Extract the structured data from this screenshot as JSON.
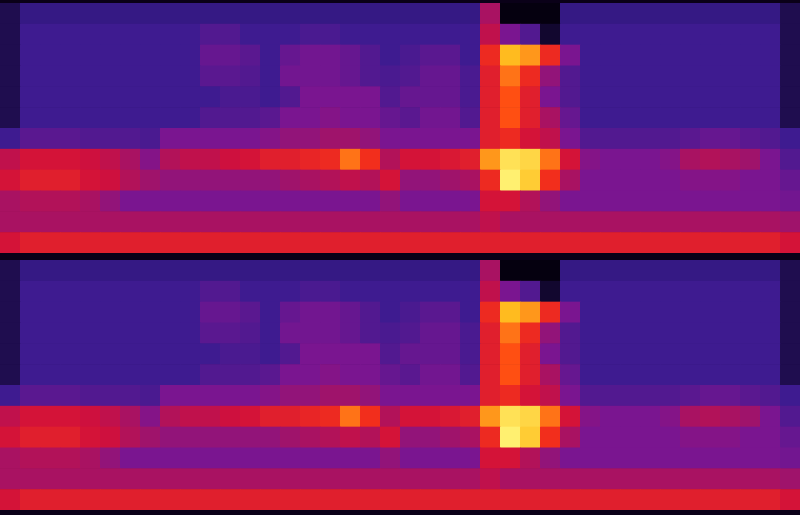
{
  "chart_data": [
    {
      "type": "heatmap",
      "tick_labels": false,
      "cells": [
        [
          0.08,
          0.13,
          0.13,
          0.13,
          0.13,
          0.13,
          0.13,
          0.13,
          0.13,
          0.13,
          0.13,
          0.13,
          0.13,
          0.13,
          0.13,
          0.13,
          0.13,
          0.13,
          0.13,
          0.13,
          0.13,
          0.13,
          0.13,
          0.13,
          0.4,
          0.02,
          0.02,
          0.02,
          0.13,
          0.13,
          0.13,
          0.13,
          0.13,
          0.13,
          0.13,
          0.13,
          0.13,
          0.13,
          0.13,
          0.08
        ],
        [
          0.08,
          0.15,
          0.15,
          0.15,
          0.15,
          0.15,
          0.15,
          0.15,
          0.15,
          0.15,
          0.2,
          0.2,
          0.15,
          0.15,
          0.15,
          0.18,
          0.18,
          0.15,
          0.15,
          0.15,
          0.15,
          0.15,
          0.15,
          0.15,
          0.45,
          0.3,
          0.2,
          0.05,
          0.15,
          0.15,
          0.15,
          0.15,
          0.15,
          0.15,
          0.15,
          0.15,
          0.15,
          0.15,
          0.15,
          0.08
        ],
        [
          0.08,
          0.15,
          0.15,
          0.15,
          0.15,
          0.15,
          0.15,
          0.15,
          0.15,
          0.15,
          0.25,
          0.25,
          0.22,
          0.15,
          0.25,
          0.28,
          0.28,
          0.25,
          0.2,
          0.15,
          0.18,
          0.22,
          0.22,
          0.15,
          0.6,
          0.85,
          0.8,
          0.6,
          0.3,
          0.15,
          0.15,
          0.15,
          0.15,
          0.15,
          0.15,
          0.15,
          0.15,
          0.15,
          0.15,
          0.08
        ],
        [
          0.08,
          0.15,
          0.15,
          0.15,
          0.15,
          0.15,
          0.15,
          0.15,
          0.15,
          0.15,
          0.22,
          0.22,
          0.2,
          0.15,
          0.28,
          0.28,
          0.28,
          0.25,
          0.2,
          0.18,
          0.2,
          0.25,
          0.25,
          0.18,
          0.55,
          0.75,
          0.6,
          0.35,
          0.2,
          0.15,
          0.15,
          0.15,
          0.15,
          0.15,
          0.15,
          0.15,
          0.15,
          0.15,
          0.15,
          0.08
        ],
        [
          0.08,
          0.15,
          0.15,
          0.15,
          0.15,
          0.15,
          0.15,
          0.15,
          0.15,
          0.15,
          0.15,
          0.18,
          0.18,
          0.15,
          0.2,
          0.3,
          0.3,
          0.3,
          0.3,
          0.2,
          0.25,
          0.25,
          0.25,
          0.18,
          0.55,
          0.7,
          0.55,
          0.3,
          0.2,
          0.15,
          0.15,
          0.15,
          0.15,
          0.15,
          0.15,
          0.15,
          0.15,
          0.15,
          0.15,
          0.08
        ],
        [
          0.08,
          0.15,
          0.15,
          0.15,
          0.15,
          0.15,
          0.15,
          0.15,
          0.15,
          0.15,
          0.2,
          0.2,
          0.2,
          0.22,
          0.3,
          0.3,
          0.32,
          0.3,
          0.3,
          0.25,
          0.22,
          0.28,
          0.28,
          0.2,
          0.55,
          0.7,
          0.55,
          0.4,
          0.25,
          0.15,
          0.15,
          0.15,
          0.15,
          0.15,
          0.15,
          0.15,
          0.15,
          0.15,
          0.15,
          0.08
        ],
        [
          0.15,
          0.22,
          0.22,
          0.22,
          0.2,
          0.2,
          0.2,
          0.18,
          0.3,
          0.3,
          0.3,
          0.3,
          0.3,
          0.32,
          0.35,
          0.35,
          0.38,
          0.38,
          0.35,
          0.3,
          0.3,
          0.3,
          0.3,
          0.3,
          0.55,
          0.6,
          0.5,
          0.45,
          0.3,
          0.2,
          0.2,
          0.2,
          0.2,
          0.2,
          0.22,
          0.25,
          0.25,
          0.22,
          0.2,
          0.15
        ],
        [
          0.45,
          0.5,
          0.5,
          0.5,
          0.48,
          0.45,
          0.4,
          0.32,
          0.42,
          0.45,
          0.45,
          0.48,
          0.5,
          0.55,
          0.55,
          0.58,
          0.6,
          0.75,
          0.62,
          0.42,
          0.5,
          0.5,
          0.52,
          0.55,
          0.8,
          0.92,
          0.9,
          0.75,
          0.5,
          0.32,
          0.3,
          0.3,
          0.3,
          0.32,
          0.4,
          0.42,
          0.4,
          0.38,
          0.3,
          0.2
        ],
        [
          0.5,
          0.55,
          0.55,
          0.55,
          0.5,
          0.48,
          0.42,
          0.38,
          0.35,
          0.35,
          0.35,
          0.35,
          0.35,
          0.35,
          0.38,
          0.4,
          0.42,
          0.45,
          0.42,
          0.5,
          0.35,
          0.35,
          0.38,
          0.4,
          0.6,
          0.95,
          0.88,
          0.62,
          0.4,
          0.3,
          0.3,
          0.3,
          0.3,
          0.3,
          0.32,
          0.32,
          0.32,
          0.3,
          0.3,
          0.25
        ],
        [
          0.4,
          0.42,
          0.42,
          0.42,
          0.4,
          0.35,
          0.3,
          0.3,
          0.3,
          0.3,
          0.3,
          0.3,
          0.3,
          0.3,
          0.3,
          0.3,
          0.3,
          0.3,
          0.3,
          0.35,
          0.3,
          0.3,
          0.3,
          0.3,
          0.5,
          0.5,
          0.42,
          0.35,
          0.3,
          0.3,
          0.3,
          0.3,
          0.3,
          0.3,
          0.3,
          0.3,
          0.3,
          0.3,
          0.3,
          0.28
        ],
        [
          0.4,
          0.4,
          0.4,
          0.4,
          0.4,
          0.4,
          0.4,
          0.4,
          0.4,
          0.4,
          0.4,
          0.4,
          0.4,
          0.4,
          0.4,
          0.4,
          0.4,
          0.4,
          0.4,
          0.4,
          0.4,
          0.4,
          0.4,
          0.4,
          0.45,
          0.4,
          0.4,
          0.4,
          0.4,
          0.4,
          0.4,
          0.4,
          0.4,
          0.4,
          0.4,
          0.4,
          0.4,
          0.4,
          0.4,
          0.38
        ],
        [
          0.5,
          0.55,
          0.55,
          0.55,
          0.55,
          0.55,
          0.55,
          0.55,
          0.55,
          0.55,
          0.55,
          0.55,
          0.55,
          0.55,
          0.55,
          0.55,
          0.55,
          0.55,
          0.55,
          0.55,
          0.55,
          0.55,
          0.55,
          0.55,
          0.55,
          0.55,
          0.55,
          0.55,
          0.55,
          0.55,
          0.55,
          0.55,
          0.55,
          0.55,
          0.55,
          0.55,
          0.55,
          0.55,
          0.55,
          0.5
        ]
      ]
    },
    {
      "type": "heatmap",
      "tick_labels": false,
      "cells": [
        [
          0.08,
          0.13,
          0.13,
          0.13,
          0.13,
          0.13,
          0.13,
          0.13,
          0.13,
          0.13,
          0.13,
          0.13,
          0.13,
          0.13,
          0.13,
          0.13,
          0.13,
          0.13,
          0.13,
          0.13,
          0.13,
          0.13,
          0.13,
          0.13,
          0.4,
          0.02,
          0.02,
          0.02,
          0.13,
          0.13,
          0.13,
          0.13,
          0.13,
          0.13,
          0.13,
          0.13,
          0.13,
          0.13,
          0.13,
          0.08
        ],
        [
          0.08,
          0.15,
          0.15,
          0.15,
          0.15,
          0.15,
          0.15,
          0.15,
          0.15,
          0.15,
          0.2,
          0.2,
          0.15,
          0.15,
          0.15,
          0.18,
          0.18,
          0.15,
          0.15,
          0.15,
          0.15,
          0.15,
          0.15,
          0.15,
          0.45,
          0.3,
          0.2,
          0.05,
          0.15,
          0.15,
          0.15,
          0.15,
          0.15,
          0.15,
          0.15,
          0.15,
          0.15,
          0.15,
          0.15,
          0.08
        ],
        [
          0.08,
          0.15,
          0.15,
          0.15,
          0.15,
          0.15,
          0.15,
          0.15,
          0.15,
          0.15,
          0.25,
          0.25,
          0.22,
          0.15,
          0.25,
          0.28,
          0.28,
          0.25,
          0.2,
          0.15,
          0.18,
          0.22,
          0.22,
          0.15,
          0.6,
          0.85,
          0.8,
          0.6,
          0.3,
          0.15,
          0.15,
          0.15,
          0.15,
          0.15,
          0.15,
          0.15,
          0.15,
          0.15,
          0.15,
          0.08
        ],
        [
          0.08,
          0.15,
          0.15,
          0.15,
          0.15,
          0.15,
          0.15,
          0.15,
          0.15,
          0.15,
          0.22,
          0.22,
          0.2,
          0.15,
          0.28,
          0.28,
          0.28,
          0.25,
          0.2,
          0.18,
          0.2,
          0.25,
          0.25,
          0.18,
          0.55,
          0.75,
          0.6,
          0.35,
          0.2,
          0.15,
          0.15,
          0.15,
          0.15,
          0.15,
          0.15,
          0.15,
          0.15,
          0.15,
          0.15,
          0.08
        ],
        [
          0.08,
          0.15,
          0.15,
          0.15,
          0.15,
          0.15,
          0.15,
          0.15,
          0.15,
          0.15,
          0.15,
          0.18,
          0.18,
          0.15,
          0.2,
          0.3,
          0.3,
          0.3,
          0.3,
          0.2,
          0.25,
          0.25,
          0.25,
          0.18,
          0.55,
          0.7,
          0.55,
          0.3,
          0.2,
          0.15,
          0.15,
          0.15,
          0.15,
          0.15,
          0.15,
          0.15,
          0.15,
          0.15,
          0.15,
          0.08
        ],
        [
          0.08,
          0.15,
          0.15,
          0.15,
          0.15,
          0.15,
          0.15,
          0.15,
          0.15,
          0.15,
          0.2,
          0.2,
          0.2,
          0.22,
          0.3,
          0.3,
          0.32,
          0.3,
          0.3,
          0.25,
          0.22,
          0.28,
          0.28,
          0.2,
          0.55,
          0.7,
          0.55,
          0.4,
          0.25,
          0.15,
          0.15,
          0.15,
          0.15,
          0.15,
          0.15,
          0.15,
          0.15,
          0.15,
          0.15,
          0.08
        ],
        [
          0.15,
          0.22,
          0.22,
          0.22,
          0.2,
          0.2,
          0.2,
          0.18,
          0.3,
          0.3,
          0.3,
          0.3,
          0.3,
          0.32,
          0.35,
          0.35,
          0.38,
          0.38,
          0.35,
          0.3,
          0.3,
          0.3,
          0.3,
          0.3,
          0.55,
          0.6,
          0.5,
          0.45,
          0.3,
          0.2,
          0.2,
          0.2,
          0.2,
          0.2,
          0.22,
          0.25,
          0.25,
          0.22,
          0.2,
          0.15
        ],
        [
          0.45,
          0.5,
          0.5,
          0.5,
          0.48,
          0.45,
          0.4,
          0.32,
          0.42,
          0.45,
          0.45,
          0.48,
          0.5,
          0.55,
          0.55,
          0.58,
          0.6,
          0.75,
          0.62,
          0.42,
          0.5,
          0.5,
          0.52,
          0.55,
          0.8,
          0.92,
          0.9,
          0.75,
          0.5,
          0.32,
          0.3,
          0.3,
          0.3,
          0.32,
          0.4,
          0.42,
          0.4,
          0.38,
          0.3,
          0.2
        ],
        [
          0.5,
          0.55,
          0.55,
          0.55,
          0.5,
          0.48,
          0.42,
          0.38,
          0.35,
          0.35,
          0.35,
          0.35,
          0.35,
          0.35,
          0.38,
          0.4,
          0.42,
          0.45,
          0.42,
          0.5,
          0.35,
          0.35,
          0.38,
          0.4,
          0.6,
          0.95,
          0.88,
          0.62,
          0.4,
          0.3,
          0.3,
          0.3,
          0.3,
          0.3,
          0.32,
          0.32,
          0.32,
          0.3,
          0.3,
          0.25
        ],
        [
          0.4,
          0.42,
          0.42,
          0.42,
          0.4,
          0.35,
          0.3,
          0.3,
          0.3,
          0.3,
          0.3,
          0.3,
          0.3,
          0.3,
          0.3,
          0.3,
          0.3,
          0.3,
          0.3,
          0.35,
          0.3,
          0.3,
          0.3,
          0.3,
          0.5,
          0.5,
          0.42,
          0.35,
          0.3,
          0.3,
          0.3,
          0.3,
          0.3,
          0.3,
          0.3,
          0.3,
          0.3,
          0.3,
          0.3,
          0.28
        ],
        [
          0.4,
          0.4,
          0.4,
          0.4,
          0.4,
          0.4,
          0.4,
          0.4,
          0.4,
          0.4,
          0.4,
          0.4,
          0.4,
          0.4,
          0.4,
          0.4,
          0.4,
          0.4,
          0.4,
          0.4,
          0.4,
          0.4,
          0.4,
          0.4,
          0.45,
          0.4,
          0.4,
          0.4,
          0.4,
          0.4,
          0.4,
          0.4,
          0.4,
          0.4,
          0.4,
          0.4,
          0.4,
          0.4,
          0.4,
          0.38
        ],
        [
          0.5,
          0.55,
          0.55,
          0.55,
          0.55,
          0.55,
          0.55,
          0.55,
          0.55,
          0.55,
          0.55,
          0.55,
          0.55,
          0.55,
          0.55,
          0.55,
          0.55,
          0.55,
          0.55,
          0.55,
          0.55,
          0.55,
          0.55,
          0.55,
          0.55,
          0.55,
          0.55,
          0.55,
          0.55,
          0.55,
          0.55,
          0.55,
          0.55,
          0.55,
          0.55,
          0.55,
          0.55,
          0.55,
          0.55,
          0.5
        ]
      ]
    }
  ]
}
